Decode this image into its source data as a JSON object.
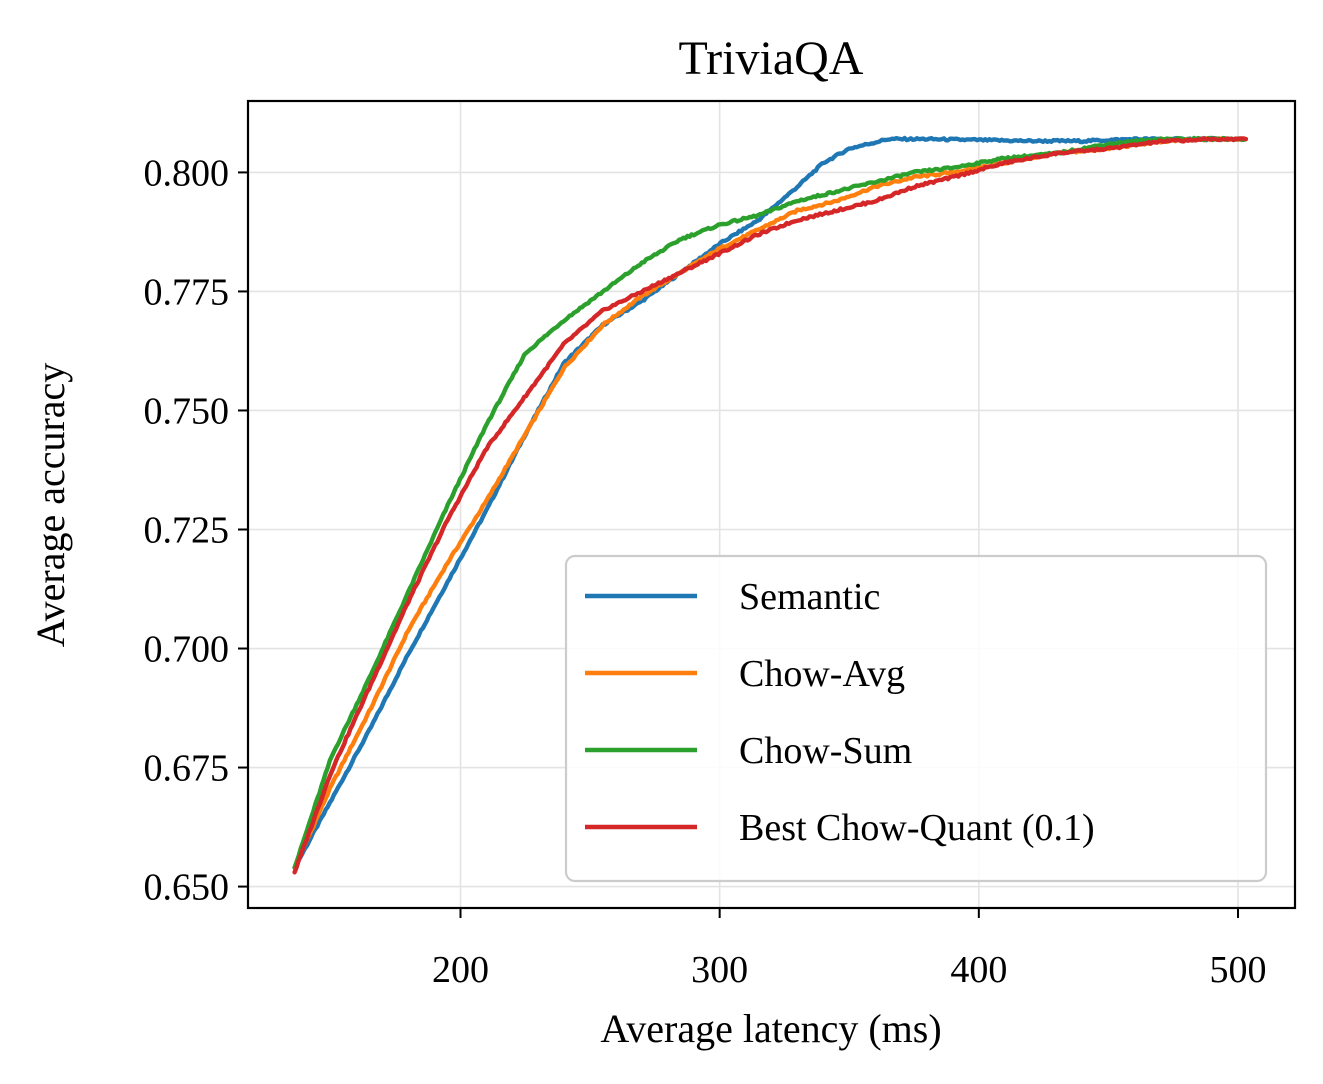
{
  "chart_data": {
    "type": "line",
    "title": "TriviaQA",
    "xlabel": "Average latency (ms)",
    "ylabel": "Average accuracy",
    "xlim": [
      118,
      522
    ],
    "ylim": [
      0.6455,
      0.815
    ],
    "xticks": [
      200,
      300,
      400,
      500
    ],
    "xtick_labels": [
      "200",
      "300",
      "400",
      "500"
    ],
    "yticks": [
      0.65,
      0.675,
      0.7,
      0.725,
      0.75,
      0.775,
      0.8
    ],
    "ytick_labels": [
      "0.650",
      "0.675",
      "0.700",
      "0.725",
      "0.750",
      "0.775",
      "0.800"
    ],
    "grid": true,
    "legend_position": "lower-right",
    "series": [
      {
        "name": "Semantic",
        "color": "#1f77b4",
        "x": [
          136,
          150,
          165,
          180,
          195,
          210,
          225,
          240,
          255,
          270,
          285,
          300,
          315,
          330,
          340,
          350,
          365,
          380,
          400,
          420,
          440,
          460,
          480,
          503
        ],
        "y": [
          0.654,
          0.668,
          0.683,
          0.699,
          0.714,
          0.729,
          0.745,
          0.76,
          0.768,
          0.773,
          0.779,
          0.785,
          0.79,
          0.797,
          0.802,
          0.805,
          0.807,
          0.807,
          0.8068,
          0.8066,
          0.8066,
          0.807,
          0.807,
          0.807
        ]
      },
      {
        "name": "Chow-Avg",
        "color": "#ff7f0e",
        "x": [
          136,
          150,
          165,
          180,
          195,
          210,
          225,
          240,
          255,
          270,
          285,
          300,
          315,
          330,
          345,
          360,
          375,
          390,
          410,
          430,
          450,
          470,
          490,
          503
        ],
        "y": [
          0.654,
          0.671,
          0.687,
          0.704,
          0.718,
          0.731,
          0.745,
          0.759,
          0.768,
          0.774,
          0.779,
          0.784,
          0.788,
          0.792,
          0.794,
          0.797,
          0.799,
          0.8,
          0.802,
          0.804,
          0.805,
          0.8065,
          0.807,
          0.807
        ]
      },
      {
        "name": "Chow-Sum",
        "color": "#2ca02c",
        "x": [
          136,
          150,
          165,
          180,
          195,
          210,
          225,
          240,
          255,
          270,
          285,
          300,
          315,
          330,
          345,
          360,
          375,
          390,
          410,
          430,
          450,
          470,
          490,
          503
        ],
        "y": [
          0.654,
          0.677,
          0.694,
          0.712,
          0.73,
          0.747,
          0.762,
          0.769,
          0.775,
          0.781,
          0.786,
          0.789,
          0.791,
          0.794,
          0.796,
          0.798,
          0.8,
          0.801,
          0.803,
          0.804,
          0.806,
          0.807,
          0.807,
          0.807
        ]
      },
      {
        "name": "Best Chow-Quant (0.1)",
        "color": "#d62728",
        "x": [
          136,
          150,
          165,
          180,
          195,
          210,
          225,
          240,
          255,
          270,
          285,
          300,
          315,
          330,
          345,
          360,
          375,
          390,
          410,
          430,
          450,
          470,
          490,
          503
        ],
        "y": [
          0.653,
          0.674,
          0.692,
          0.71,
          0.727,
          0.742,
          0.753,
          0.764,
          0.771,
          0.775,
          0.779,
          0.783,
          0.787,
          0.79,
          0.792,
          0.794,
          0.797,
          0.799,
          0.802,
          0.804,
          0.805,
          0.8065,
          0.807,
          0.807
        ]
      }
    ]
  }
}
